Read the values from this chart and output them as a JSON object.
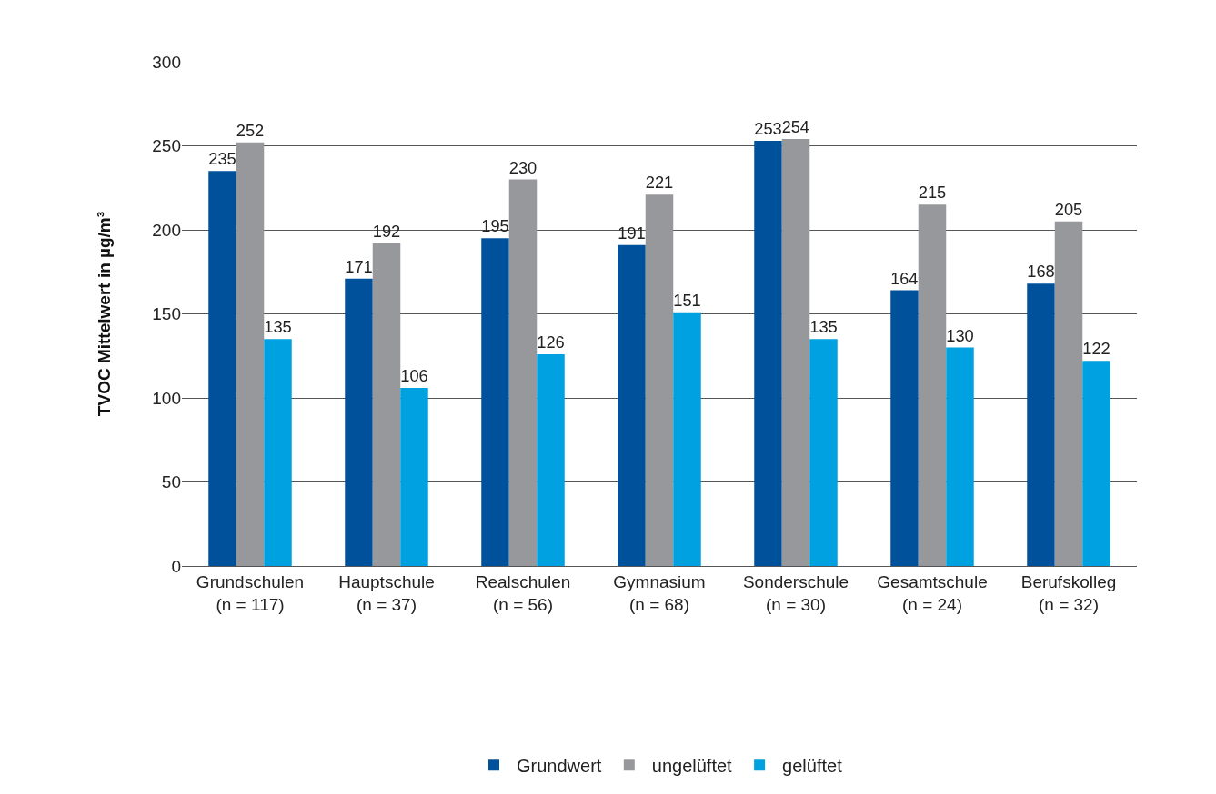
{
  "chart_data": {
    "type": "bar",
    "ylabel": "TVOC Mittelwert in µg/m³",
    "categories": [
      "Grundschulen\n(n = 117)",
      "Hauptschule\n(n = 37)",
      "Realschulen\n(n = 56)",
      "Gymnasium\n(n = 68)",
      "Sonderschule\n(n = 30)",
      "Gesamtschule\n(n = 24)",
      "Berufskolleg\n(n = 32)"
    ],
    "series": [
      {
        "name": "Grundwert",
        "color": "#00519c",
        "values": [
          235,
          171,
          195,
          191,
          253,
          164,
          168
        ]
      },
      {
        "name": "ungelüftet",
        "color": "#97989b",
        "values": [
          252,
          192,
          230,
          221,
          254,
          215,
          205
        ]
      },
      {
        "name": "gelüftet",
        "color": "#00a1e1",
        "values": [
          135,
          106,
          126,
          151,
          135,
          130,
          122
        ]
      }
    ],
    "ylim": [
      0,
      300
    ],
    "yticks": [
      0,
      50,
      100,
      150,
      200,
      250,
      300
    ],
    "grid": "y",
    "legend": "bottom",
    "data_labels": true
  }
}
